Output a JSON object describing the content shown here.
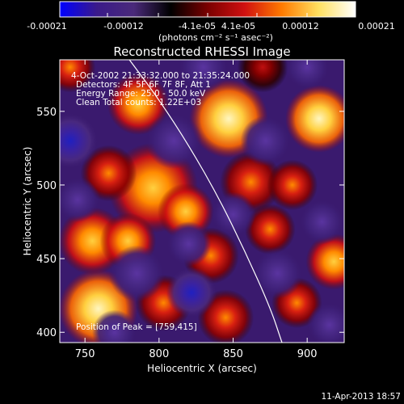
{
  "colorbar": {
    "tick_labels": [
      "-0.00021",
      "-0.00012",
      "-4.1e-05",
      "4.1e-05",
      "0.00012",
      "0.00021"
    ],
    "unit_label": "(photons cm⁻² s⁻¹ asec⁻²)",
    "range": [
      -0.00021,
      0.00021
    ],
    "colors": [
      "#0000ff",
      "#3a1a8a",
      "#4a2a7a",
      "#000000",
      "#7a0000",
      "#d01010",
      "#ff7a00",
      "#ffe060",
      "#ffffff"
    ]
  },
  "chart_data": {
    "type": "heatmap",
    "title": "Reconstructed RHESSI Image",
    "xlabel": "Heliocentric X (arcsec)",
    "ylabel": "Heliocentric Y (arcsec)",
    "xlim": [
      733,
      925
    ],
    "ylim": [
      393,
      585
    ],
    "x_ticks": [
      750,
      800,
      850,
      900
    ],
    "y_ticks": [
      400,
      450,
      500,
      550
    ],
    "info_lines": [
      "4-Oct-2002 21:33:32.000 to 21:35:24.000",
      "Detectors: 4F 5F 6F 7F 8F, Att 1",
      "Energy Range: 25.0 - 50.0 keV",
      "Clean     Total counts: 1.22E+03"
    ],
    "peak_label": "Position of Peak = [759,415]",
    "peak": [
      759,
      415
    ],
    "limb_curve": [
      [
        780,
        585
      ],
      [
        800,
        558
      ],
      [
        820,
        527
      ],
      [
        840,
        492
      ],
      [
        858,
        455
      ],
      [
        875,
        417
      ],
      [
        883,
        393
      ]
    ],
    "blobs": [
      {
        "x": 759,
        "y": 416,
        "r": 14,
        "v": 1.0
      },
      {
        "x": 847,
        "y": 545,
        "r": 14,
        "v": 0.92
      },
      {
        "x": 908,
        "y": 545,
        "r": 12,
        "v": 0.88
      },
      {
        "x": 786,
        "y": 555,
        "r": 11,
        "v": 0.72
      },
      {
        "x": 796,
        "y": 498,
        "r": 16,
        "v": 0.78
      },
      {
        "x": 818,
        "y": 482,
        "r": 10,
        "v": 0.6
      },
      {
        "x": 755,
        "y": 462,
        "r": 12,
        "v": 0.75
      },
      {
        "x": 779,
        "y": 462,
        "r": 10,
        "v": 0.62
      },
      {
        "x": 766,
        "y": 508,
        "r": 10,
        "v": 0.55
      },
      {
        "x": 862,
        "y": 502,
        "r": 11,
        "v": 0.55
      },
      {
        "x": 890,
        "y": 500,
        "r": 9,
        "v": 0.5
      },
      {
        "x": 835,
        "y": 452,
        "r": 10,
        "v": 0.55
      },
      {
        "x": 875,
        "y": 470,
        "r": 9,
        "v": 0.5
      },
      {
        "x": 918,
        "y": 448,
        "r": 10,
        "v": 0.75
      },
      {
        "x": 893,
        "y": 420,
        "r": 9,
        "v": 0.55
      },
      {
        "x": 845,
        "y": 410,
        "r": 10,
        "v": 0.5
      },
      {
        "x": 803,
        "y": 420,
        "r": 10,
        "v": 0.45
      },
      {
        "x": 740,
        "y": 580,
        "r": 9,
        "v": 0.45
      },
      {
        "x": 870,
        "y": 580,
        "r": 9,
        "v": 0.35
      },
      {
        "x": 740,
        "y": 530,
        "r": 10,
        "v": -0.9
      },
      {
        "x": 822,
        "y": 427,
        "r": 9,
        "v": -0.85
      },
      {
        "x": 810,
        "y": 530,
        "r": 10,
        "v": -0.55
      },
      {
        "x": 872,
        "y": 530,
        "r": 9,
        "v": -0.5
      },
      {
        "x": 830,
        "y": 580,
        "r": 9,
        "v": -0.5
      },
      {
        "x": 900,
        "y": 580,
        "r": 8,
        "v": -0.45
      },
      {
        "x": 785,
        "y": 440,
        "r": 10,
        "v": -0.5
      },
      {
        "x": 880,
        "y": 440,
        "r": 9,
        "v": -0.5
      },
      {
        "x": 910,
        "y": 475,
        "r": 8,
        "v": -0.4
      },
      {
        "x": 820,
        "y": 460,
        "r": 8,
        "v": -0.45
      },
      {
        "x": 770,
        "y": 400,
        "r": 8,
        "v": -0.3
      },
      {
        "x": 915,
        "y": 405,
        "r": 8,
        "v": -0.4
      },
      {
        "x": 850,
        "y": 480,
        "r": 8,
        "v": -0.35
      },
      {
        "x": 745,
        "y": 490,
        "r": 8,
        "v": -0.35
      }
    ]
  },
  "footer": {
    "timestamp": "11-Apr-2013 18:57"
  }
}
